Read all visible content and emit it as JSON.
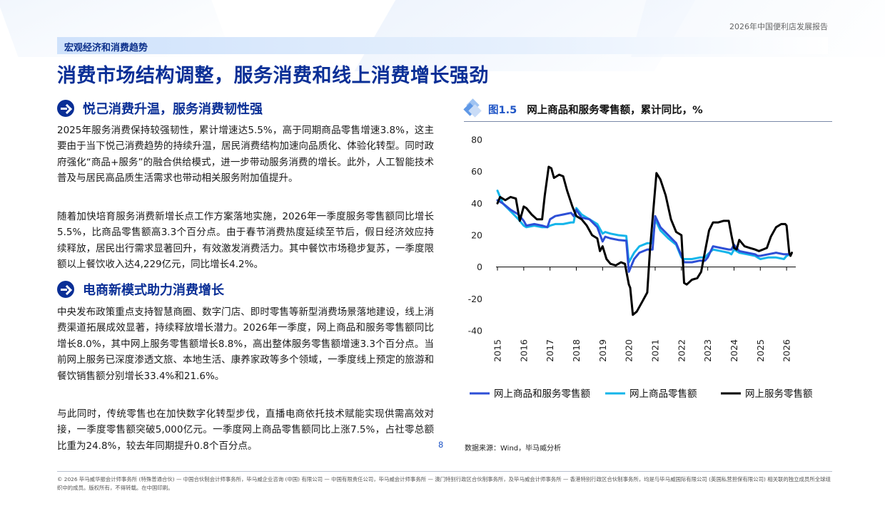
{
  "header": {
    "report_name": "2026年中国便利店发展报告",
    "section_tag": "宏观经济和消费趋势",
    "page_title": "消费市场结构调整，服务消费和线上消费增长强劲"
  },
  "left": {
    "heading1": "悦己消费升温，服务消费韧性强",
    "para1": "2025年服务消费保持较强韧性，累计增速达5.5%，高于同期商品零售增速3.8%，这主要由于当下悦己消费趋势的持续升温，居民消费结构加速向品质化、体验化转型。同时政府强化“商品+服务”的融合供给模式，进一步带动服务消费的增长。此外，人工智能技术普及与居民高品质生活需求也带动相关服务附加值提升。",
    "para2": "随着加快培育服务消费新增长点工作方案落地实施，2026年一季度服务零售额同比增长5.5%，比商品零售额高3.3个百分点。由于春节消费热度延续至节后，假日经济效应持续释放，居民出行需求显著回升，有效激发消费活力。其中餐饮市场稳步复苏，一季度限额以上餐饮收入达4,229亿元，同比增长4.2%。",
    "heading2": "电商新模式助力消费增长",
    "para3": "中央发布政策重点支持智慧商圈、数字门店、即时零售等新型消费场景落地建设，线上消费渠道拓展成效显著，持续释放增长潜力。2026年一季度，网上商品和服务零售额同比增长8.0%，其中网上服务零售额增长8.8%，高出整体服务零售额增速3.3个百分点。当前网上服务已深度渗透文旅、本地生活、康养家政等多个领域，一季度线上预定的旅游和餐饮销售额分别增长33.4%和21.6%。",
    "para4": "与此同时，传统零售也在加快数字化转型步伐，直播电商依托技术赋能实现供需高效对接，一季度零售额突破5,000亿元。一季度网上商品零售额同比上涨7.5%，占社零总额比重为24.8%，较去年同期提升0.8个百分点。"
  },
  "figure": {
    "number": "图1.5",
    "title": "网上商品和服务零售额，累计同比，%",
    "source": "数据来源：Wind，毕马威分析"
  },
  "chart_data": {
    "type": "line",
    "title": "网上商品和服务零售额，累计同比，%",
    "xlabel": "",
    "ylabel": "",
    "xlim": [
      2015.0,
      2026.35
    ],
    "ylim": [
      -40,
      80
    ],
    "yticks": [
      80,
      60,
      40,
      20,
      0,
      -20,
      -40
    ],
    "xticks": [
      "2015",
      "2016",
      "2017",
      "2018",
      "2019",
      "2020",
      "2021",
      "2022",
      "2023",
      "2024",
      "2025",
      "2026"
    ],
    "grid": false,
    "legend_position": "bottom",
    "series": [
      {
        "name": "网上商品和服务零售额",
        "color": "#2d4fd6",
        "points": [
          [
            2015.0,
            42
          ],
          [
            2015.2,
            40
          ],
          [
            2015.5,
            36
          ],
          [
            2015.8,
            33
          ],
          [
            2016.0,
            29
          ],
          [
            2016.1,
            26
          ],
          [
            2016.4,
            27
          ],
          [
            2016.7,
            26
          ],
          [
            2016.9,
            25
          ],
          [
            2017.0,
            30
          ],
          [
            2017.2,
            32
          ],
          [
            2017.5,
            33
          ],
          [
            2017.8,
            34
          ],
          [
            2017.9,
            32
          ],
          [
            2018.0,
            36
          ],
          [
            2018.2,
            31
          ],
          [
            2018.5,
            30
          ],
          [
            2018.8,
            25
          ],
          [
            2019.0,
            16
          ],
          [
            2019.1,
            19
          ],
          [
            2019.3,
            18
          ],
          [
            2019.6,
            17
          ],
          [
            2019.9,
            16.5
          ],
          [
            2020.0,
            -3
          ],
          [
            2020.2,
            5
          ],
          [
            2020.4,
            9
          ],
          [
            2020.7,
            11
          ],
          [
            2020.9,
            11
          ],
          [
            2021.0,
            32
          ],
          [
            2021.2,
            25
          ],
          [
            2021.5,
            20
          ],
          [
            2021.8,
            15
          ],
          [
            2022.0,
            7
          ],
          [
            2022.1,
            3
          ],
          [
            2022.4,
            3
          ],
          [
            2022.7,
            4
          ],
          [
            2022.9,
            4
          ],
          [
            2023.0,
            6
          ],
          [
            2023.2,
            13
          ],
          [
            2023.5,
            12
          ],
          [
            2023.8,
            11
          ],
          [
            2023.9,
            11
          ],
          [
            2024.0,
            14
          ],
          [
            2024.2,
            10
          ],
          [
            2024.5,
            9
          ],
          [
            2024.8,
            8
          ],
          [
            2024.9,
            7
          ],
          [
            2025.0,
            7
          ],
          [
            2025.3,
            8
          ],
          [
            2025.6,
            9
          ],
          [
            2025.9,
            8
          ],
          [
            2026.0,
            8
          ],
          [
            2026.15,
            8
          ]
        ]
      },
      {
        "name": "网上商品零售额",
        "color": "#14b5ea",
        "points": [
          [
            2015.0,
            48
          ],
          [
            2015.2,
            40
          ],
          [
            2015.5,
            35
          ],
          [
            2015.8,
            30
          ],
          [
            2016.0,
            26
          ],
          [
            2016.1,
            25
          ],
          [
            2016.4,
            26
          ],
          [
            2016.7,
            25
          ],
          [
            2016.9,
            25
          ],
          [
            2017.0,
            26
          ],
          [
            2017.2,
            27
          ],
          [
            2017.5,
            27
          ],
          [
            2017.8,
            28
          ],
          [
            2017.9,
            28
          ],
          [
            2018.0,
            37
          ],
          [
            2018.2,
            33
          ],
          [
            2018.5,
            30
          ],
          [
            2018.8,
            27
          ],
          [
            2019.0,
            21
          ],
          [
            2019.1,
            22
          ],
          [
            2019.3,
            21
          ],
          [
            2019.6,
            20
          ],
          [
            2019.9,
            19.5
          ],
          [
            2020.0,
            3
          ],
          [
            2020.2,
            9
          ],
          [
            2020.4,
            13
          ],
          [
            2020.7,
            15
          ],
          [
            2020.9,
            15
          ],
          [
            2021.0,
            30
          ],
          [
            2021.2,
            23
          ],
          [
            2021.5,
            18
          ],
          [
            2021.8,
            14
          ],
          [
            2022.0,
            6
          ],
          [
            2022.1,
            5
          ],
          [
            2022.4,
            5
          ],
          [
            2022.7,
            6
          ],
          [
            2022.9,
            6
          ],
          [
            2023.0,
            8
          ],
          [
            2023.2,
            11
          ],
          [
            2023.5,
            10
          ],
          [
            2023.8,
            9
          ],
          [
            2023.9,
            8
          ],
          [
            2024.0,
            11
          ],
          [
            2024.2,
            9
          ],
          [
            2024.5,
            8
          ],
          [
            2024.8,
            7
          ],
          [
            2024.9,
            6
          ],
          [
            2025.0,
            5
          ],
          [
            2025.3,
            6
          ],
          [
            2025.6,
            6
          ],
          [
            2025.9,
            5
          ],
          [
            2026.0,
            7
          ],
          [
            2026.15,
            8
          ]
        ]
      },
      {
        "name": "网上服务零售额",
        "color": "#000000",
        "points": [
          [
            2015.0,
            40
          ],
          [
            2015.1,
            44
          ],
          [
            2015.3,
            42
          ],
          [
            2015.5,
            44
          ],
          [
            2015.7,
            43
          ],
          [
            2015.85,
            29
          ],
          [
            2016.0,
            38
          ],
          [
            2016.1,
            37
          ],
          [
            2016.3,
            33
          ],
          [
            2016.5,
            30
          ],
          [
            2016.7,
            30
          ],
          [
            2016.8,
            45
          ],
          [
            2016.95,
            63
          ],
          [
            2017.05,
            62
          ],
          [
            2017.15,
            56
          ],
          [
            2017.35,
            58
          ],
          [
            2017.5,
            57
          ],
          [
            2017.65,
            48
          ],
          [
            2017.85,
            38
          ],
          [
            2018.0,
            32
          ],
          [
            2018.2,
            30
          ],
          [
            2018.4,
            26
          ],
          [
            2018.6,
            20
          ],
          [
            2018.8,
            18
          ],
          [
            2018.9,
            10
          ],
          [
            2019.0,
            13
          ],
          [
            2019.15,
            5
          ],
          [
            2019.3,
            2
          ],
          [
            2019.5,
            1
          ],
          [
            2019.7,
            3
          ],
          [
            2019.85,
            2
          ],
          [
            2020.0,
            -11
          ],
          [
            2020.05,
            -13
          ],
          [
            2020.15,
            -30
          ],
          [
            2020.3,
            -28
          ],
          [
            2020.5,
            -22
          ],
          [
            2020.7,
            -16
          ],
          [
            2020.8,
            10
          ],
          [
            2020.9,
            30
          ],
          [
            2021.05,
            59
          ],
          [
            2021.2,
            55
          ],
          [
            2021.4,
            45
          ],
          [
            2021.6,
            30
          ],
          [
            2021.8,
            22
          ],
          [
            2022.0,
            20
          ],
          [
            2022.1,
            -10
          ],
          [
            2022.2,
            -11
          ],
          [
            2022.4,
            -8
          ],
          [
            2022.6,
            -7
          ],
          [
            2022.75,
            -3
          ],
          [
            2022.9,
            10
          ],
          [
            2023.05,
            23
          ],
          [
            2023.2,
            28
          ],
          [
            2023.4,
            28
          ],
          [
            2023.6,
            29
          ],
          [
            2023.8,
            29
          ],
          [
            2023.9,
            20
          ],
          [
            2024.0,
            12
          ],
          [
            2024.1,
            11
          ],
          [
            2024.2,
            17
          ],
          [
            2024.4,
            13
          ],
          [
            2024.6,
            12
          ],
          [
            2024.8,
            11
          ],
          [
            2024.95,
            10
          ],
          [
            2025.1,
            11
          ],
          [
            2025.25,
            12
          ],
          [
            2025.4,
            19
          ],
          [
            2025.6,
            25
          ],
          [
            2025.8,
            27
          ],
          [
            2025.95,
            27
          ],
          [
            2026.0,
            26
          ],
          [
            2026.1,
            9
          ],
          [
            2026.15,
            7
          ],
          [
            2026.2,
            9
          ]
        ]
      }
    ]
  },
  "page": {
    "number": "8",
    "footer": "© 2026 毕马威华振会计师事务所 (特殊普通合伙) — 中国合伙制会计师事务所，毕马威企业咨询 (中国) 有限公司 — 中国有限责任公司，毕马威会计师事务所 — 澳门特别行政区合伙制事务所，及毕马威会计师事务所 — 香港特别行政区合伙制事务所，均是与毕马威国际有限公司 (英国私营担保有限公司) 相关联的独立成员所全球组织中的成员。版权所有，不得转载。在中国印刷。"
  }
}
